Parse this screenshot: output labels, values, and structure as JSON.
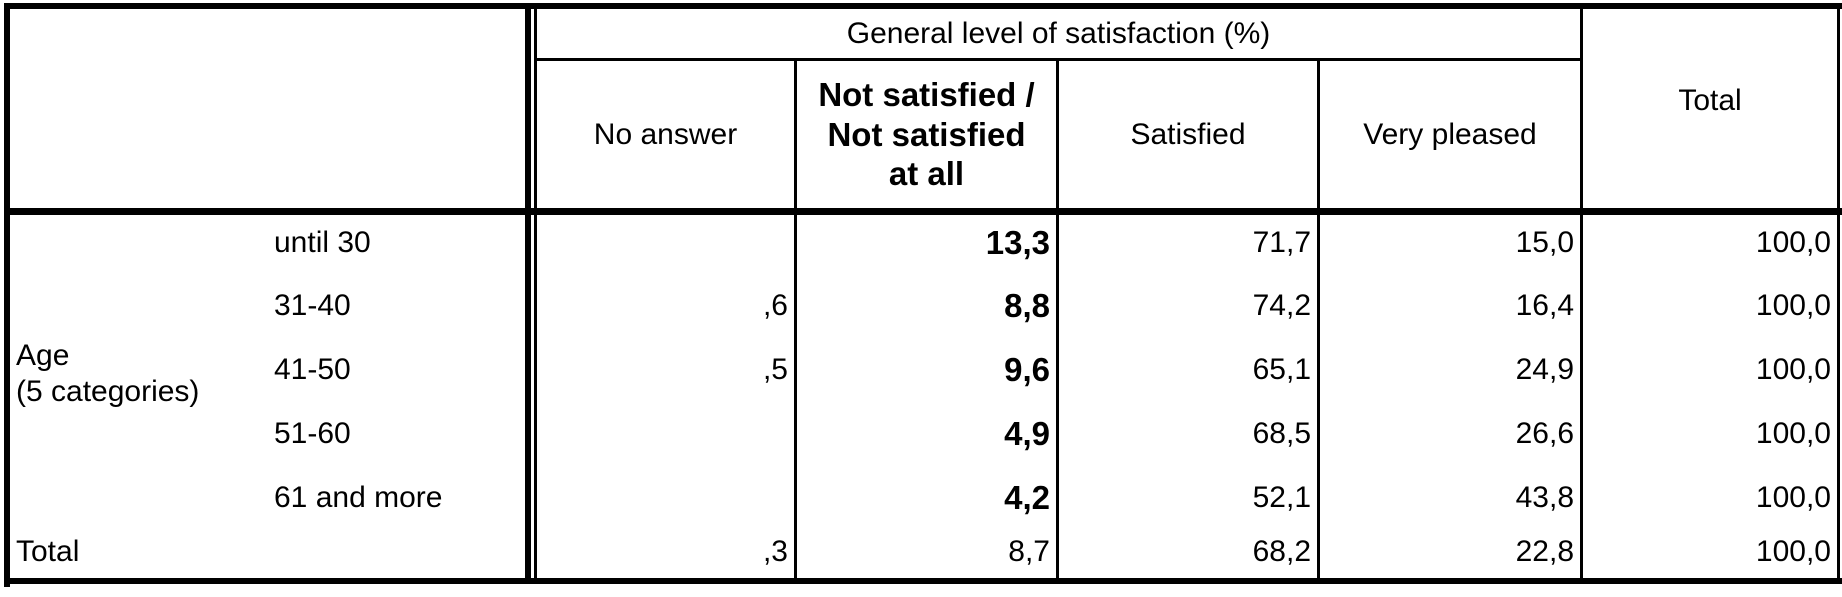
{
  "table": {
    "group_header": "General level of satisfaction (%)",
    "columns": [
      "No answer",
      "Not satisfied / Not satisfied at all",
      "Satisfied",
      "Very pleased"
    ],
    "total_header": "Total",
    "row_group": [
      "Age",
      "(5 categories)"
    ],
    "rows": [
      {
        "label": "until 30",
        "cells": [
          null,
          "13,3",
          "71,7",
          "15,0",
          "100,0"
        ]
      },
      {
        "label": "31-40",
        "cells": [
          ",6",
          "8,8",
          "74,2",
          "16,4",
          "100,0"
        ]
      },
      {
        "label": "41-50",
        "cells": [
          ",5",
          "9,6",
          "65,1",
          "24,9",
          "100,0"
        ]
      },
      {
        "label": "51-60",
        "cells": [
          null,
          "4,9",
          "68,5",
          "26,6",
          "100,0"
        ]
      },
      {
        "label": "61 and more",
        "cells": [
          null,
          "4,2",
          "52,1",
          "43,8",
          "100,0"
        ]
      }
    ],
    "total_row": {
      "label": "Total",
      "cells": [
        ",3",
        "8,7",
        "68,2",
        "22,8",
        "100,0"
      ]
    }
  }
}
